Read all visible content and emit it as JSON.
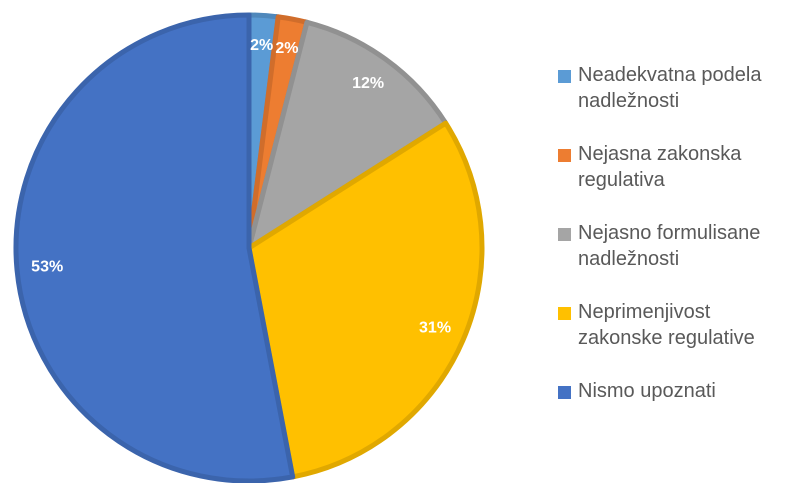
{
  "chart_data": {
    "type": "pie",
    "categories": [
      "Neadekvatna podela nadležnosti",
      "Nejasna zakonska regulativa",
      "Nejasno formulisane nadležnosti",
      "Neprimenjivost zakonske regulative",
      "Nismo upoznati"
    ],
    "values": [
      2,
      2,
      12,
      31,
      53
    ],
    "value_labels": [
      "2%",
      "2%",
      "12%",
      "31%",
      "53%"
    ],
    "colors": [
      "#5b9bd5",
      "#ed7d31",
      "#a5a5a5",
      "#ffc000",
      "#4472c4"
    ],
    "legend": "right"
  }
}
